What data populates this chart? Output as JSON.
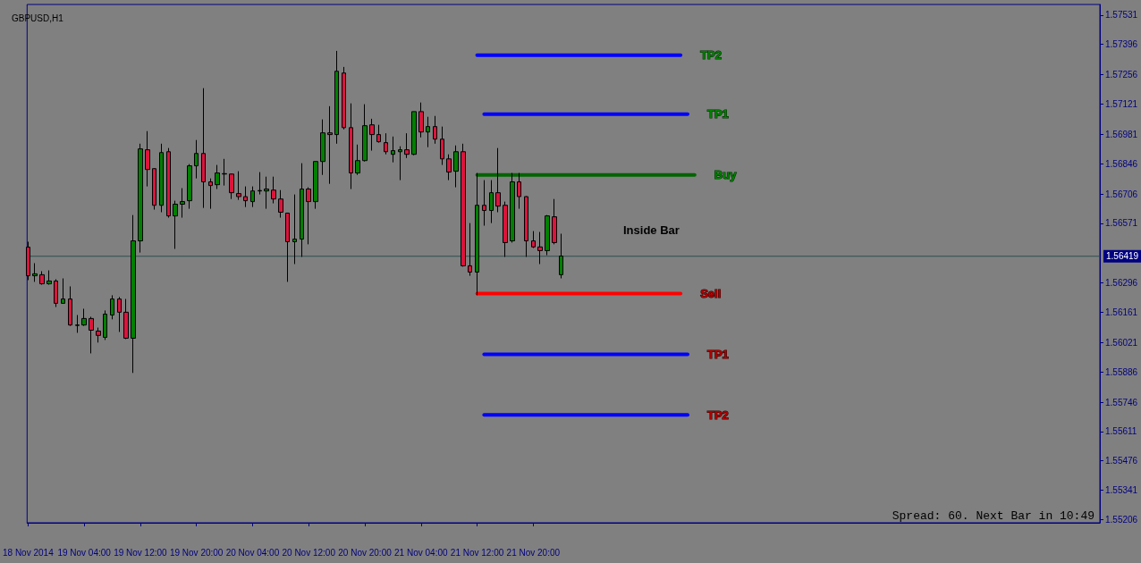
{
  "chart_data": {
    "type": "candlestick",
    "title": "GBPUSD,H1",
    "x": [
      "2014-11-18T20:00",
      "2014-11-18T21:00",
      "2014-11-18T22:00",
      "2014-11-18T23:00",
      "2014-11-19T00:00",
      "2014-11-19T01:00",
      "2014-11-19T02:00",
      "2014-11-19T03:00",
      "2014-11-19T04:00",
      "2014-11-19T05:00",
      "2014-11-19T06:00",
      "2014-11-19T07:00",
      "2014-11-19T08:00",
      "2014-11-19T09:00",
      "2014-11-19T10:00",
      "2014-11-19T11:00",
      "2014-11-19T12:00",
      "2014-11-19T13:00",
      "2014-11-19T14:00",
      "2014-11-19T15:00",
      "2014-11-19T16:00",
      "2014-11-19T17:00",
      "2014-11-19T18:00",
      "2014-11-19T19:00",
      "2014-11-19T20:00",
      "2014-11-19T21:00",
      "2014-11-19T22:00",
      "2014-11-19T23:00",
      "2014-11-20T00:00",
      "2014-11-20T01:00",
      "2014-11-20T02:00",
      "2014-11-20T03:00",
      "2014-11-20T04:00",
      "2014-11-20T05:00",
      "2014-11-20T06:00",
      "2014-11-20T07:00",
      "2014-11-20T08:00",
      "2014-11-20T09:00",
      "2014-11-20T10:00",
      "2014-11-20T11:00",
      "2014-11-20T12:00",
      "2014-11-20T13:00",
      "2014-11-20T14:00",
      "2014-11-20T15:00",
      "2014-11-20T16:00",
      "2014-11-20T17:00",
      "2014-11-20T18:00",
      "2014-11-20T19:00",
      "2014-11-20T20:00",
      "2014-11-20T21:00",
      "2014-11-20T22:00",
      "2014-11-20T23:00",
      "2014-11-21T00:00",
      "2014-11-21T01:00",
      "2014-11-21T02:00",
      "2014-11-21T03:00",
      "2014-11-21T04:00",
      "2014-11-21T05:00",
      "2014-11-21T06:00",
      "2014-11-21T07:00",
      "2014-11-21T08:00",
      "2014-11-21T09:00",
      "2014-11-21T10:00",
      "2014-11-21T11:00",
      "2014-11-21T12:00",
      "2014-11-21T13:00",
      "2014-11-21T14:00",
      "2014-11-21T15:00",
      "2014-11-21T16:00",
      "2014-11-21T17:00",
      "2014-11-21T18:00",
      "2014-11-21T19:00",
      "2014-11-21T20:00",
      "2014-11-21T21:00",
      "2014-11-21T22:00",
      "2014-11-21T23:00",
      "2014-11-22T00:00"
    ],
    "ohlc": [
      [
        1.56461,
        1.56486,
        1.56309,
        1.56329
      ],
      [
        1.56329,
        1.56387,
        1.56301,
        1.56338
      ],
      [
        1.56334,
        1.5635,
        1.56288,
        1.56292
      ],
      [
        1.56292,
        1.56354,
        1.56288,
        1.56305
      ],
      [
        1.56305,
        1.56313,
        1.56185,
        1.56202
      ],
      [
        1.56202,
        1.56317,
        1.562,
        1.56222
      ],
      [
        1.56222,
        1.5628,
        1.56098,
        1.56102
      ],
      [
        1.56102,
        1.56148,
        1.56066,
        1.561
      ],
      [
        1.56102,
        1.56177,
        1.56098,
        1.56132
      ],
      [
        1.56132,
        1.5614,
        1.55971,
        1.56078
      ],
      [
        1.56074,
        1.5609,
        1.56021,
        1.56054
      ],
      [
        1.56045,
        1.56169,
        1.56033,
        1.56152
      ],
      [
        1.56148,
        1.56239,
        1.56128,
        1.56222
      ],
      [
        1.56222,
        1.56231,
        1.5607,
        1.56161
      ],
      [
        1.56161,
        1.56222,
        1.56037,
        1.56041
      ],
      [
        1.56041,
        1.56609,
        1.55881,
        1.5649
      ],
      [
        1.5649,
        1.56938,
        1.56436,
        1.56914
      ],
      [
        1.5691,
        1.56996,
        1.56741,
        1.56819
      ],
      [
        1.56823,
        1.56825,
        1.56634,
        1.56654
      ],
      [
        1.56654,
        1.56938,
        1.56622,
        1.56897
      ],
      [
        1.56901,
        1.56918,
        1.56597,
        1.56605
      ],
      [
        1.56605,
        1.56675,
        1.56453,
        1.56659
      ],
      [
        1.56659,
        1.56733,
        1.56597,
        1.56671
      ],
      [
        1.56675,
        1.56844,
        1.56638,
        1.56836
      ],
      [
        1.56836,
        1.56955,
        1.56778,
        1.56893
      ],
      [
        1.56893,
        1.57194,
        1.56642,
        1.56762
      ],
      [
        1.56762,
        1.56778,
        1.56638,
        1.56745
      ],
      [
        1.56749,
        1.5684,
        1.56729,
        1.56803
      ],
      [
        1.56798,
        1.56868,
        1.56745,
        1.568
      ],
      [
        1.56798,
        1.568,
        1.56683,
        1.56712
      ],
      [
        1.56708,
        1.56811,
        1.56679,
        1.56694
      ],
      [
        1.56694,
        1.56741,
        1.56646,
        1.56675
      ],
      [
        1.56671,
        1.56741,
        1.56646,
        1.5672
      ],
      [
        1.5672,
        1.56807,
        1.56704,
        1.56722
      ],
      [
        1.5672,
        1.56786,
        1.56638,
        1.56729
      ],
      [
        1.56724,
        1.56786,
        1.56663,
        1.56683
      ],
      [
        1.56683,
        1.56724,
        1.56597,
        1.56622
      ],
      [
        1.56618,
        1.5662,
        1.56301,
        1.56486
      ],
      [
        1.56486,
        1.56704,
        1.56383,
        1.56498
      ],
      [
        1.56498,
        1.56848,
        1.56416,
        1.56729
      ],
      [
        1.56729,
        1.56737,
        1.56474,
        1.56671
      ],
      [
        1.56671,
        1.56856,
        1.56638,
        1.56856
      ],
      [
        1.56856,
        1.5705,
        1.56794,
        1.56988
      ],
      [
        1.56988,
        1.57111,
        1.56753,
        1.5698
      ],
      [
        1.5698,
        1.57366,
        1.56938,
        1.57272
      ],
      [
        1.57264,
        1.57292,
        1.57004,
        1.57012
      ],
      [
        1.57012,
        1.57124,
        1.56729,
        1.56803
      ],
      [
        1.56803,
        1.56934,
        1.56794,
        1.5686
      ],
      [
        1.5686,
        1.5712,
        1.56856,
        1.57021
      ],
      [
        1.57025,
        1.57053,
        1.56906,
        1.5698
      ],
      [
        1.5698,
        1.57025,
        1.56943,
        1.56947
      ],
      [
        1.56943,
        1.56986,
        1.56889,
        1.56901
      ],
      [
        1.56889,
        1.56971,
        1.56852,
        1.56906
      ],
      [
        1.56901,
        1.56926,
        1.5677,
        1.5691
      ],
      [
        1.5691,
        1.56986,
        1.56872,
        1.56889
      ],
      [
        1.56889,
        1.57086,
        1.56885,
        1.57086
      ],
      [
        1.57086,
        1.57128,
        1.56967,
        1.56992
      ],
      [
        1.56992,
        1.57062,
        1.56922,
        1.57017
      ],
      [
        1.57017,
        1.57066,
        1.56938,
        1.56959
      ],
      [
        1.56959,
        1.57017,
        1.5684,
        1.56868
      ],
      [
        1.56868,
        1.56889,
        1.5677,
        1.56807
      ],
      [
        1.56811,
        1.5693,
        1.56737,
        1.56901
      ],
      [
        1.56901,
        1.56938,
        1.56371,
        1.56375
      ],
      [
        1.56375,
        1.56572,
        1.56329,
        1.56346
      ],
      [
        1.56346,
        1.56803,
        1.56239,
        1.56654
      ],
      [
        1.56654,
        1.5677,
        1.5656,
        1.5663
      ],
      [
        1.5663,
        1.5677,
        1.56572,
        1.56712
      ],
      [
        1.56712,
        1.56918,
        1.56622,
        1.5665
      ],
      [
        1.56654,
        1.56671,
        1.56416,
        1.56482
      ],
      [
        1.5649,
        1.56803,
        1.56482,
        1.56762
      ],
      [
        1.56762,
        1.56803,
        1.56638,
        1.56694
      ],
      [
        1.56694,
        1.56696,
        1.56416,
        1.5649
      ],
      [
        1.5649,
        1.56535,
        1.56457,
        1.56462
      ],
      [
        1.56462,
        1.56531,
        1.56383,
        1.56445
      ],
      [
        1.56445,
        1.56609,
        1.56424,
        1.56605
      ],
      [
        1.56601,
        1.56683,
        1.56474,
        1.56482
      ],
      [
        1.56334,
        1.56523,
        1.56317,
        1.5642
      ]
    ],
    "colors": [
      "#dc143c",
      "#008000",
      "#dc143c",
      "#008000",
      "#dc143c",
      "#008000",
      "#dc143c",
      "#008000",
      "#008000",
      "#dc143c",
      "#dc143c",
      "#008000",
      "#008000",
      "#dc143c",
      "#dc143c",
      "#008000",
      "#008000",
      "#dc143c",
      "#dc143c",
      "#008000",
      "#dc143c",
      "#008000",
      "#008000",
      "#008000",
      "#008000",
      "#dc143c",
      "#dc143c",
      "#008000",
      "#008000",
      "#dc143c",
      "#dc143c",
      "#dc143c",
      "#008000",
      "#008000",
      "#008000",
      "#dc143c",
      "#dc143c",
      "#dc143c",
      "#008000",
      "#008000",
      "#dc143c",
      "#008000",
      "#008000",
      "#dc143c",
      "#008000",
      "#dc143c",
      "#dc143c",
      "#008000",
      "#008000",
      "#dc143c",
      "#dc143c",
      "#dc143c",
      "#008000",
      "#008000",
      "#dc143c",
      "#008000",
      "#dc143c",
      "#008000",
      "#dc143c",
      "#dc143c",
      "#dc143c",
      "#008000",
      "#dc143c",
      "#dc143c",
      "#008000",
      "#dc143c",
      "#008000",
      "#dc143c",
      "#dc143c",
      "#008000",
      "#dc143c",
      "#dc143c",
      "#dc143c",
      "#dc143c",
      "#008000",
      "#dc143c",
      "#008000"
    ],
    "series": [
      {
        "type": "line",
        "name": "TP2",
        "color": "#0000ff",
        "x": [
          "2014-11-21T12:00",
          "2014-11-22T17:00"
        ],
        "values": [
          1.57346,
          1.57346
        ]
      },
      {
        "type": "line",
        "name": "TP1",
        "color": "#0000ff",
        "x": [
          "2014-11-21T13:00",
          "2014-11-22T18:00"
        ],
        "values": [
          1.57074,
          1.57074
        ]
      },
      {
        "type": "line",
        "name": "Buy",
        "color": "#006400",
        "x": [
          "2014-11-21T12:00",
          "2014-11-22T19:00"
        ],
        "values": [
          1.56794,
          1.56794
        ]
      },
      {
        "type": "line",
        "name": "Sell",
        "color": "#ff0000",
        "x": [
          "2014-11-21T12:00",
          "2014-11-22T17:00"
        ],
        "values": [
          1.56247,
          1.56247
        ]
      },
      {
        "type": "line",
        "name": "TP1",
        "color": "#0000ff",
        "x": [
          "2014-11-21T13:00",
          "2014-11-22T18:00"
        ],
        "values": [
          1.55967,
          1.55967
        ]
      },
      {
        "type": "line",
        "name": "TP2",
        "color": "#0000ff",
        "x": [
          "2014-11-21T13:00",
          "2014-11-22T18:00"
        ],
        "values": [
          1.55688,
          1.55688
        ]
      }
    ],
    "marker": "none",
    "line_style": "solid",
    "ref_lines": [
      {
        "axis": "y",
        "value": 1.56419,
        "label": "1.56419",
        "color": "#2f4f4f"
      }
    ],
    "annotations": [
      "Inside Bar",
      "Spread: 60. Next Bar in 10:49"
    ],
    "xlim": [
      "2014-11-18T19:52",
      "2014-11-25T04:45"
    ],
    "xticks": [
      {
        "value": "2014-11-18T20:00",
        "label": "18 Nov 2014"
      },
      {
        "value": "2014-11-19T04:00",
        "label": "19 Nov 04:00"
      },
      {
        "value": "2014-11-19T12:00",
        "label": "19 Nov 12:00"
      },
      {
        "value": "2014-11-19T20:00",
        "label": "19 Nov 20:00"
      },
      {
        "value": "2014-11-20T04:00",
        "label": "20 Nov 04:00"
      },
      {
        "value": "2014-11-20T12:00",
        "label": "20 Nov 12:00"
      },
      {
        "value": "2014-11-20T20:00",
        "label": "20 Nov 20:00"
      },
      {
        "value": "2014-11-21T04:00",
        "label": "21 Nov 04:00"
      },
      {
        "value": "2014-11-21T12:00",
        "label": "21 Nov 12:00"
      },
      {
        "value": "2014-11-21T20:00",
        "label": "21 Nov 20:00"
      }
    ],
    "ylim": [
      1.5519,
      1.5758
    ],
    "yticks": [
      1.57531,
      1.57396,
      1.57256,
      1.57121,
      1.56981,
      1.56846,
      1.56706,
      1.56571,
      1.56296,
      1.56161,
      1.56021,
      1.55886,
      1.55746,
      1.55611,
      1.55476,
      1.55341,
      1.55206
    ],
    "grid": false,
    "legend": false
  }
}
